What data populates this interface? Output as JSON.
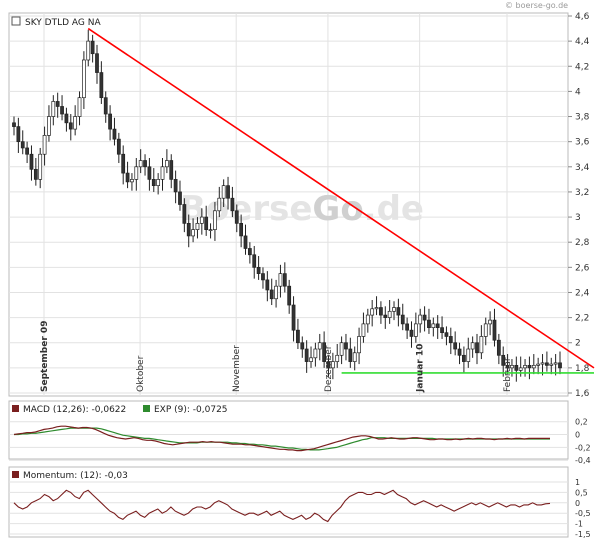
{
  "copyright": "© boerse-go.de",
  "watermark": {
    "left": "Boerse",
    "mid": "Go",
    "right": ".de"
  },
  "colors": {
    "up_fill": "#ffffff",
    "down_fill": "#333333",
    "candle_border": "#222222",
    "trend_down": "#ff0000",
    "support": "#33dd33",
    "macd": "#7a1f1f",
    "signal": "#2e8b2e",
    "momentum": "#7a1f1f"
  },
  "chart_data": {
    "type": "candlestick",
    "title": "SKY DTLD AG NA",
    "ylim": [
      1.6,
      4.6
    ],
    "yticks": [
      "1,6",
      "1,8",
      "2",
      "2,2",
      "2,4",
      "2,6",
      "2,8",
      "3",
      "3,2",
      "3,4",
      "3,6",
      "3,8",
      "4",
      "4,2",
      "4,4",
      "4,6"
    ],
    "y_axis_position": "right",
    "month_labels": [
      {
        "label": "September 09",
        "index": 0,
        "bold": true
      },
      {
        "label": "Oktober",
        "index": 22,
        "bold": false
      },
      {
        "label": "November",
        "index": 44,
        "bold": false
      },
      {
        "label": "Dezember",
        "index": 65,
        "bold": false
      },
      {
        "label": "Januar 10",
        "index": 86,
        "bold": true
      },
      {
        "label": "Februar",
        "index": 106,
        "bold": false
      }
    ],
    "close": [
      3.72,
      3.6,
      3.55,
      3.5,
      3.38,
      3.3,
      3.5,
      3.65,
      3.8,
      3.92,
      3.88,
      3.82,
      3.75,
      3.7,
      3.8,
      3.95,
      4.25,
      4.4,
      4.3,
      4.15,
      3.95,
      3.82,
      3.7,
      3.62,
      3.5,
      3.35,
      3.28,
      3.3,
      3.4,
      3.45,
      3.4,
      3.3,
      3.25,
      3.3,
      3.4,
      3.45,
      3.3,
      3.2,
      3.1,
      2.95,
      2.85,
      2.9,
      2.95,
      3.0,
      2.9,
      2.9,
      3.05,
      3.15,
      3.25,
      3.15,
      3.05,
      2.95,
      2.85,
      2.75,
      2.7,
      2.6,
      2.55,
      2.5,
      2.42,
      2.35,
      2.45,
      2.55,
      2.45,
      2.3,
      2.1,
      2.0,
      1.95,
      1.85,
      1.88,
      1.95,
      2.0,
      1.85,
      1.8,
      1.85,
      1.9,
      2.0,
      1.95,
      1.85,
      1.92,
      2.05,
      2.15,
      2.22,
      2.27,
      2.28,
      2.22,
      2.2,
      2.25,
      2.28,
      2.22,
      2.15,
      2.1,
      2.05,
      2.15,
      2.22,
      2.18,
      2.12,
      2.15,
      2.12,
      2.08,
      2.05,
      2.0,
      1.95,
      1.9,
      1.85,
      1.95,
      2.0,
      1.92,
      2.05,
      2.15,
      2.18,
      2.02,
      1.9,
      1.82,
      1.8,
      1.82,
      1.78,
      1.8,
      1.82,
      1.8,
      1.82,
      1.83,
      1.84,
      1.82,
      1.83,
      1.84,
      1.8
    ],
    "trendlines": [
      {
        "name": "Abwaertstrend",
        "from": {
          "index": 17,
          "value": 4.5
        },
        "to": {
          "index": 140,
          "value": 1.8
        },
        "color": "#ff0000"
      },
      {
        "name": "Unterstuetzung",
        "from": {
          "index": 75,
          "value": 1.76
        },
        "to": {
          "index": 140,
          "value": 1.76
        },
        "color": "#33dd33"
      }
    ]
  },
  "macd_panel": {
    "label_macd": "MACD (12,26): -0,0622",
    "label_signal": "EXP (9): -0,0725",
    "ylim": [
      -0.35,
      0.32
    ],
    "yticks": [
      "0,2",
      "0",
      "-0,2",
      "-0,4"
    ],
    "macd": [
      0.0,
      0.01,
      0.02,
      0.03,
      0.03,
      0.04,
      0.06,
      0.08,
      0.09,
      0.1,
      0.12,
      0.13,
      0.13,
      0.12,
      0.11,
      0.1,
      0.11,
      0.11,
      0.1,
      0.08,
      0.05,
      0.02,
      -0.01,
      -0.03,
      -0.05,
      -0.06,
      -0.07,
      -0.06,
      -0.05,
      -0.06,
      -0.08,
      -0.09,
      -0.09,
      -0.1,
      -0.12,
      -0.14,
      -0.15,
      -0.16,
      -0.15,
      -0.14,
      -0.13,
      -0.12,
      -0.12,
      -0.12,
      -0.11,
      -0.12,
      -0.11,
      -0.12,
      -0.12,
      -0.13,
      -0.14,
      -0.15,
      -0.15,
      -0.15,
      -0.16,
      -0.16,
      -0.17,
      -0.18,
      -0.19,
      -0.2,
      -0.21,
      -0.22,
      -0.23,
      -0.23,
      -0.24,
      -0.24,
      -0.25,
      -0.25,
      -0.24,
      -0.23,
      -0.22,
      -0.2,
      -0.18,
      -0.16,
      -0.14,
      -0.12,
      -0.1,
      -0.08,
      -0.06,
      -0.04,
      -0.03,
      -0.02,
      -0.02,
      -0.03,
      -0.05,
      -0.07,
      -0.07,
      -0.06,
      -0.05,
      -0.06,
      -0.07,
      -0.07,
      -0.06,
      -0.05,
      -0.05,
      -0.06,
      -0.07,
      -0.08,
      -0.08,
      -0.07,
      -0.07,
      -0.08,
      -0.08,
      -0.07,
      -0.08,
      -0.07,
      -0.06,
      -0.07,
      -0.06,
      -0.06,
      -0.07,
      -0.07,
      -0.08,
      -0.07,
      -0.07,
      -0.06,
      -0.07,
      -0.06,
      -0.06,
      -0.07,
      -0.06,
      -0.06,
      -0.06,
      -0.06,
      -0.06,
      -0.06
    ],
    "signal": [
      0.0,
      0.0,
      0.01,
      0.01,
      0.02,
      0.02,
      0.03,
      0.04,
      0.05,
      0.06,
      0.07,
      0.08,
      0.09,
      0.1,
      0.1,
      0.1,
      0.1,
      0.1,
      0.1,
      0.1,
      0.09,
      0.07,
      0.05,
      0.03,
      0.01,
      -0.01,
      -0.02,
      -0.03,
      -0.04,
      -0.05,
      -0.06,
      -0.06,
      -0.07,
      -0.08,
      -0.09,
      -0.1,
      -0.11,
      -0.12,
      -0.13,
      -0.13,
      -0.13,
      -0.13,
      -0.13,
      -0.12,
      -0.12,
      -0.12,
      -0.12,
      -0.12,
      -0.12,
      -0.12,
      -0.13,
      -0.13,
      -0.14,
      -0.14,
      -0.15,
      -0.15,
      -0.16,
      -0.16,
      -0.17,
      -0.18,
      -0.18,
      -0.19,
      -0.2,
      -0.21,
      -0.21,
      -0.22,
      -0.23,
      -0.23,
      -0.24,
      -0.24,
      -0.24,
      -0.23,
      -0.22,
      -0.21,
      -0.2,
      -0.18,
      -0.16,
      -0.14,
      -0.12,
      -0.1,
      -0.08,
      -0.07,
      -0.05,
      -0.05,
      -0.05,
      -0.05,
      -0.06,
      -0.06,
      -0.06,
      -0.06,
      -0.06,
      -0.06,
      -0.06,
      -0.06,
      -0.06,
      -0.06,
      -0.06,
      -0.07,
      -0.07,
      -0.07,
      -0.07,
      -0.07,
      -0.07,
      -0.07,
      -0.07,
      -0.07,
      -0.07,
      -0.07,
      -0.07,
      -0.07,
      -0.07,
      -0.07,
      -0.07,
      -0.07,
      -0.07,
      -0.07,
      -0.07,
      -0.07,
      -0.07,
      -0.07,
      -0.07,
      -0.07,
      -0.07,
      -0.07
    ]
  },
  "momentum_panel": {
    "label": "Momentum: (12): -0,03",
    "ylim": [
      -1.5,
      1.0
    ],
    "yticks": [
      "1",
      "0,5",
      "0",
      "-0,5",
      "-1",
      "-1,5"
    ],
    "values": [
      0.0,
      -0.2,
      -0.3,
      -0.2,
      0.0,
      0.1,
      0.2,
      0.4,
      0.3,
      0.1,
      0.2,
      0.4,
      0.6,
      0.5,
      0.3,
      0.2,
      0.5,
      0.6,
      0.4,
      0.2,
      0.0,
      -0.2,
      -0.4,
      -0.5,
      -0.7,
      -0.8,
      -0.6,
      -0.5,
      -0.4,
      -0.6,
      -0.7,
      -0.5,
      -0.4,
      -0.3,
      -0.5,
      -0.4,
      -0.2,
      -0.4,
      -0.5,
      -0.6,
      -0.5,
      -0.3,
      -0.2,
      -0.2,
      -0.3,
      -0.2,
      0.0,
      0.1,
      0.0,
      -0.1,
      -0.3,
      -0.4,
      -0.5,
      -0.6,
      -0.5,
      -0.5,
      -0.6,
      -0.5,
      -0.4,
      -0.6,
      -0.5,
      -0.4,
      -0.6,
      -0.7,
      -0.8,
      -0.7,
      -0.6,
      -0.8,
      -0.7,
      -0.5,
      -0.6,
      -0.8,
      -0.9,
      -0.6,
      -0.4,
      -0.2,
      0.1,
      0.3,
      0.4,
      0.5,
      0.5,
      0.4,
      0.4,
      0.5,
      0.5,
      0.4,
      0.5,
      0.6,
      0.4,
      0.3,
      0.2,
      0.0,
      -0.1,
      0.0,
      0.1,
      0.0,
      -0.1,
      -0.2,
      -0.1,
      -0.2,
      -0.3,
      -0.4,
      -0.3,
      -0.2,
      -0.1,
      0.0,
      -0.1,
      0.0,
      -0.1,
      -0.2,
      -0.1,
      0.0,
      -0.1,
      -0.2,
      -0.1,
      -0.1,
      -0.2,
      -0.1,
      -0.1,
      0.0,
      -0.1,
      -0.1,
      -0.05,
      -0.03
    ]
  }
}
